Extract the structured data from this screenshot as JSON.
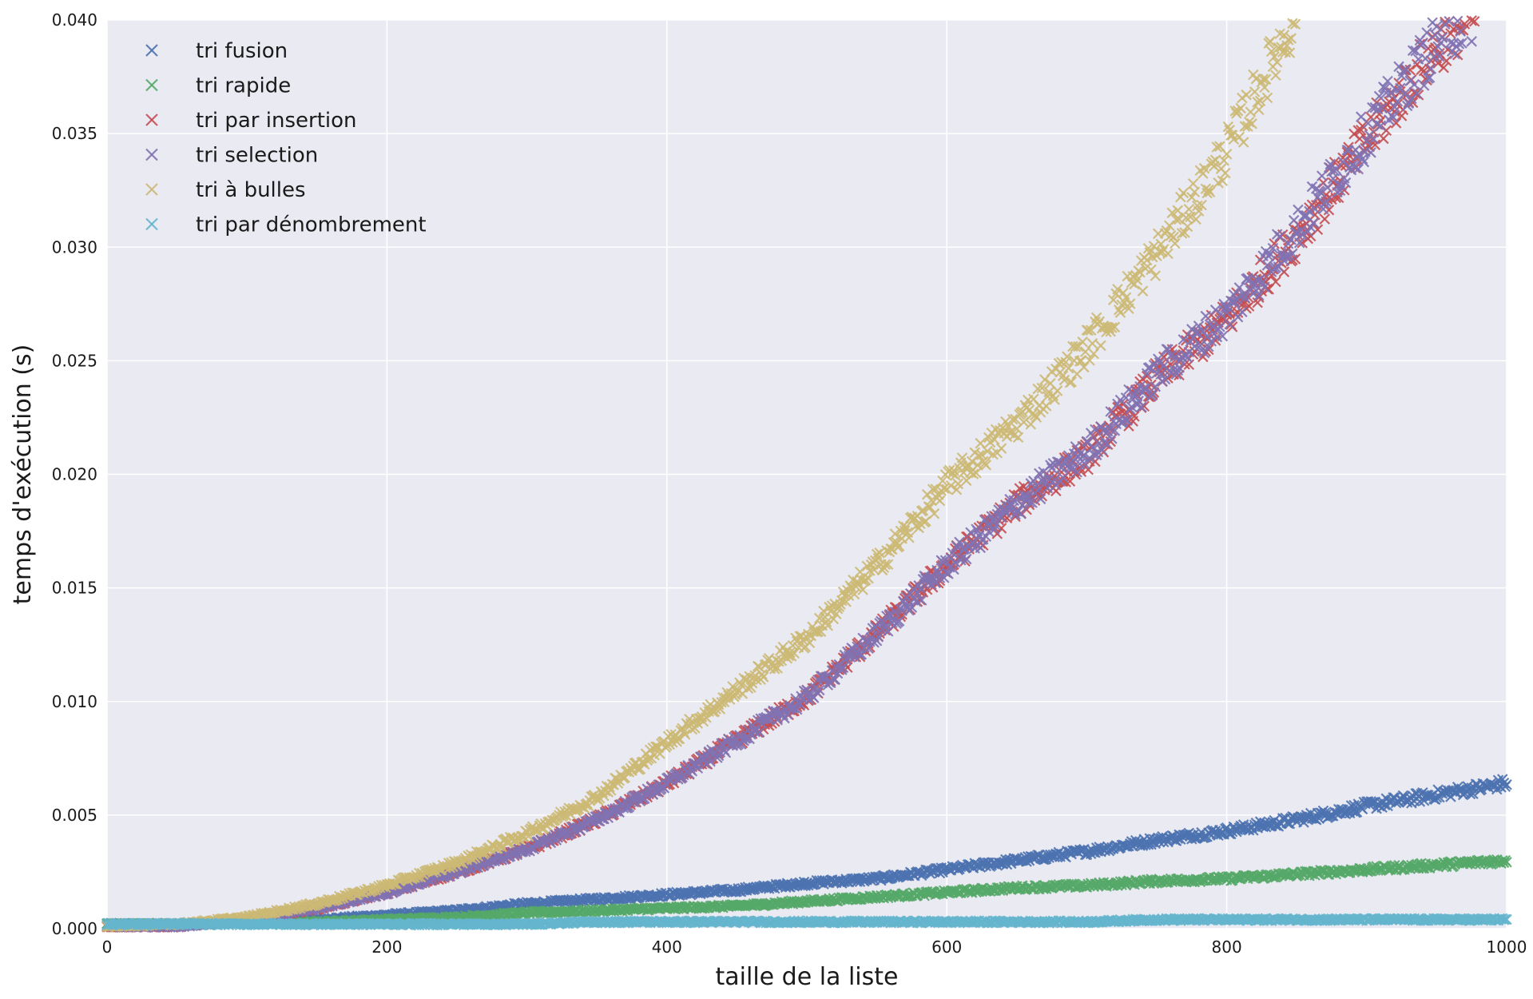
{
  "chart_data": {
    "type": "scatter",
    "title": "",
    "xlabel": "taille de la liste",
    "ylabel": "temps d'exécution (s)",
    "xlim": [
      0,
      1000
    ],
    "ylim": [
      0,
      0.04
    ],
    "x_ticks": [
      {
        "value": 0,
        "label": "0"
      },
      {
        "value": 200,
        "label": "200"
      },
      {
        "value": 400,
        "label": "400"
      },
      {
        "value": 600,
        "label": "600"
      },
      {
        "value": 800,
        "label": "800"
      },
      {
        "value": 1000,
        "label": "1000"
      }
    ],
    "y_ticks": [
      {
        "value": 0,
        "label": "0.000"
      },
      {
        "value": 0.005,
        "label": "0.005"
      },
      {
        "value": 0.01,
        "label": "0.010"
      },
      {
        "value": 0.015,
        "label": "0.015"
      },
      {
        "value": 0.02,
        "label": "0.020"
      },
      {
        "value": 0.025,
        "label": "0.025"
      },
      {
        "value": 0.03,
        "label": "0.030"
      },
      {
        "value": 0.035,
        "label": "0.035"
      },
      {
        "value": 0.04,
        "label": "0.040"
      }
    ],
    "grid": true,
    "background": "#eaeaf2",
    "marker": "x",
    "legend_position": "top-left",
    "series": [
      {
        "name": "tri fusion",
        "color": "#4c72b0",
        "x": [
          0,
          50,
          100,
          150,
          200,
          250,
          300,
          350,
          400,
          450,
          500,
          550,
          600,
          650,
          700,
          750,
          800,
          850,
          900,
          950,
          1000
        ],
        "y": [
          0.0002,
          0.0002,
          0.0003,
          0.0004,
          0.0006,
          0.0008,
          0.0011,
          0.0013,
          0.0015,
          0.0017,
          0.002,
          0.0022,
          0.0026,
          0.003,
          0.0034,
          0.0039,
          0.0043,
          0.0048,
          0.0054,
          0.0059,
          0.0064
        ]
      },
      {
        "name": "tri rapide",
        "color": "#55a868",
        "x": [
          0,
          50,
          100,
          150,
          200,
          250,
          300,
          350,
          400,
          450,
          500,
          550,
          600,
          650,
          700,
          750,
          800,
          850,
          900,
          950,
          1000
        ],
        "y": [
          0.0002,
          0.0002,
          0.0003,
          0.0003,
          0.0004,
          0.0005,
          0.0007,
          0.0008,
          0.0009,
          0.001,
          0.0012,
          0.0014,
          0.0016,
          0.0018,
          0.0019,
          0.0021,
          0.0022,
          0.0024,
          0.0026,
          0.0028,
          0.003
        ]
      },
      {
        "name": "tri par insertion",
        "color": "#c44e52",
        "x": [
          0,
          50,
          100,
          150,
          200,
          250,
          300,
          350,
          400,
          450,
          500,
          550,
          600,
          650,
          700,
          750,
          800,
          850,
          900,
          950,
          980
        ],
        "y": [
          0.0001,
          0.0001,
          0.0004,
          0.0009,
          0.0016,
          0.0025,
          0.0035,
          0.0048,
          0.0064,
          0.0083,
          0.0102,
          0.013,
          0.016,
          0.0187,
          0.0208,
          0.0242,
          0.0268,
          0.0305,
          0.0347,
          0.0388,
          0.0405
        ]
      },
      {
        "name": "tri selection",
        "color": "#8172b2",
        "x": [
          0,
          50,
          100,
          150,
          200,
          250,
          300,
          350,
          400,
          450,
          500,
          550,
          600,
          650,
          700,
          750,
          800,
          850,
          900,
          950,
          980
        ],
        "y": [
          0.0001,
          0.0001,
          0.0004,
          0.0009,
          0.0016,
          0.0025,
          0.0035,
          0.0048,
          0.0064,
          0.0083,
          0.0102,
          0.013,
          0.016,
          0.0187,
          0.021,
          0.0244,
          0.027,
          0.0308,
          0.035,
          0.039,
          0.0405
        ]
      },
      {
        "name": "tri à bulles",
        "color": "#ccb974",
        "x": [
          0,
          50,
          100,
          150,
          200,
          250,
          300,
          350,
          400,
          450,
          500,
          550,
          600,
          650,
          700,
          750,
          800,
          850
        ],
        "y": [
          0.0001,
          0.0002,
          0.0005,
          0.0011,
          0.0019,
          0.0029,
          0.0042,
          0.0058,
          0.0082,
          0.0105,
          0.0128,
          0.016,
          0.0195,
          0.0222,
          0.0256,
          0.0297,
          0.0342,
          0.0403
        ]
      },
      {
        "name": "tri par dénombrement",
        "color": "#64b5cd",
        "x": [
          0,
          50,
          100,
          150,
          200,
          250,
          300,
          350,
          400,
          450,
          500,
          550,
          600,
          650,
          700,
          750,
          800,
          850,
          900,
          950,
          1000
        ],
        "y": [
          0.0002,
          0.0002,
          0.0002,
          0.0002,
          0.0002,
          0.0002,
          0.0002,
          0.0003,
          0.0003,
          0.0003,
          0.0003,
          0.0003,
          0.0003,
          0.0003,
          0.0003,
          0.0004,
          0.0004,
          0.0004,
          0.0004,
          0.0004,
          0.0004
        ]
      }
    ]
  }
}
